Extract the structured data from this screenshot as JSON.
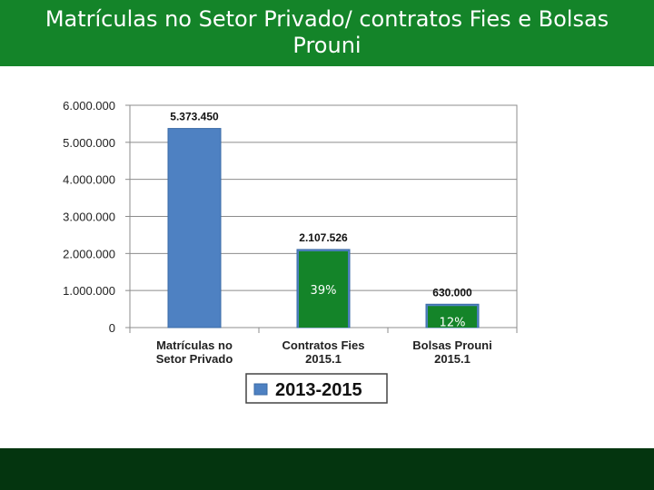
{
  "header": {
    "title_line1": "Matrículas no Setor Privado/ contratos Fies e Bolsas",
    "title_line2": "Prouni"
  },
  "chart_data": {
    "type": "bar",
    "categories": [
      [
        "Matrículas no",
        "Setor Privado"
      ],
      [
        "Contratos Fies",
        "2015.1"
      ],
      [
        "Bolsas Prouni",
        "2015.1"
      ]
    ],
    "series": [
      {
        "name": "2013-2015",
        "values": [
          5373450,
          2107526,
          630000
        ],
        "color": "#4e81c2"
      }
    ],
    "data_labels": [
      "5.373.450",
      "2.107.526",
      "630.000"
    ],
    "ylim": [
      0,
      6000000
    ],
    "yticks": [
      0,
      1000000,
      2000000,
      3000000,
      4000000,
      5000000,
      6000000
    ],
    "ytick_labels": [
      "0",
      "1.000.000",
      "2.000.000",
      "3.000.000",
      "4.000.000",
      "5.000.000",
      "6.000.000"
    ],
    "gridlines": true,
    "legend_position": "bottom",
    "title": "",
    "xlabel": "",
    "ylabel": ""
  },
  "annotations": {
    "overlays": [
      {
        "category_index": 1,
        "value": 2107526,
        "label": "39%",
        "fill": "#148429"
      },
      {
        "category_index": 2,
        "value": 630000,
        "label": "12%",
        "fill": "#148429"
      }
    ]
  }
}
